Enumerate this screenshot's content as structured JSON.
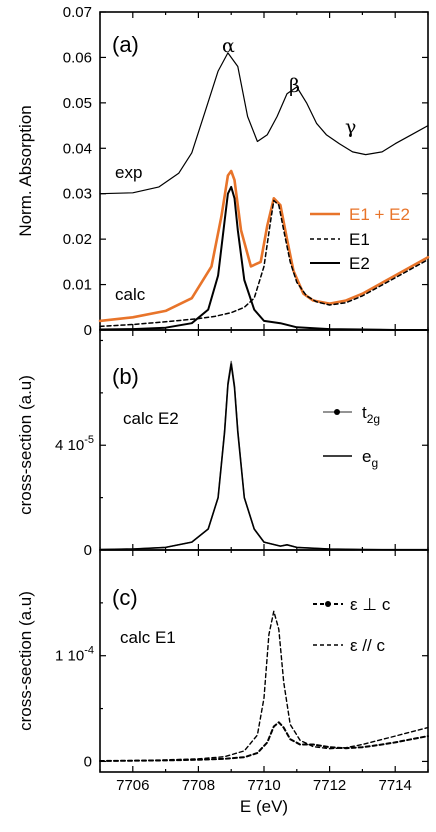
{
  "chart_data": [
    {
      "panel": "(a)",
      "type": "line",
      "ylabel": "Norm. Absorption",
      "ylim": [
        0,
        0.07
      ],
      "yticks": [
        "0",
        "0.01",
        "0.02",
        "0.03",
        "0.04",
        "0.05",
        "0.06",
        "0.07"
      ],
      "xlim": [
        7705,
        7715
      ],
      "annotations": {
        "exp": "exp",
        "calc": "calc",
        "alpha": "α",
        "beta": "β",
        "gamma": "γ"
      },
      "legend": [
        "E1 + E2",
        "E1",
        "E2"
      ],
      "legend_placement": "right",
      "colors": {
        "E1 + E2": "#e8742a",
        "E1": "#000000",
        "E2": "#000000",
        "exp": "#000000"
      },
      "series": [
        {
          "name": "exp",
          "x": [
            7705,
            7706,
            7706.8,
            7707.4,
            7707.8,
            7708.2,
            7708.6,
            7708.9,
            7709.2,
            7709.5,
            7709.8,
            7710.1,
            7710.4,
            7710.7,
            7711.0,
            7711.3,
            7711.6,
            7711.9,
            7712.3,
            7712.7,
            7713.1,
            7713.6,
            7714.0,
            7714.5,
            7715
          ],
          "y": [
            0.03,
            0.0302,
            0.0315,
            0.0345,
            0.039,
            0.048,
            0.057,
            0.061,
            0.058,
            0.047,
            0.0415,
            0.043,
            0.047,
            0.052,
            0.0535,
            0.05,
            0.0455,
            0.043,
            0.041,
            0.0392,
            0.0386,
            0.0392,
            0.041,
            0.043,
            0.045
          ]
        },
        {
          "name": "E1 + E2",
          "x": [
            7705,
            7706,
            7707,
            7707.8,
            7708.4,
            7708.7,
            7708.9,
            7709.0,
            7709.1,
            7709.3,
            7709.6,
            7709.9,
            7710.1,
            7710.3,
            7710.5,
            7710.7,
            7710.9,
            7711.2,
            7711.5,
            7712,
            7712.5,
            7713,
            7713.5,
            7714,
            7714.5,
            7715
          ],
          "y": [
            0.002,
            0.0028,
            0.0042,
            0.007,
            0.014,
            0.025,
            0.034,
            0.035,
            0.033,
            0.022,
            0.014,
            0.015,
            0.023,
            0.029,
            0.0275,
            0.02,
            0.013,
            0.008,
            0.0065,
            0.0058,
            0.0065,
            0.008,
            0.01,
            0.012,
            0.014,
            0.016
          ]
        },
        {
          "name": "E1",
          "x": [
            7705,
            7706,
            7707,
            7708,
            7708.5,
            7709,
            7709.4,
            7709.7,
            7710.0,
            7710.2,
            7710.3,
            7710.45,
            7710.6,
            7710.8,
            7711.0,
            7711.3,
            7711.6,
            7712,
            7712.5,
            7713,
            7713.5,
            7714,
            7714.5,
            7715
          ],
          "y": [
            0.0008,
            0.0012,
            0.0018,
            0.0025,
            0.003,
            0.0038,
            0.005,
            0.007,
            0.014,
            0.024,
            0.0285,
            0.0275,
            0.022,
            0.015,
            0.0105,
            0.0075,
            0.0062,
            0.0055,
            0.006,
            0.0075,
            0.0095,
            0.0115,
            0.0135,
            0.0155
          ]
        },
        {
          "name": "E2",
          "x": [
            7705,
            7706,
            7707,
            7707.8,
            7708.3,
            7708.6,
            7708.8,
            7708.9,
            7709.0,
            7709.1,
            7709.2,
            7709.4,
            7709.7,
            7710.0,
            7710.5,
            7711,
            7712,
            7713,
            7714,
            7715
          ],
          "y": [
            0.0001,
            0.0002,
            0.0005,
            0.0015,
            0.0045,
            0.012,
            0.024,
            0.03,
            0.0315,
            0.029,
            0.022,
            0.011,
            0.0045,
            0.002,
            0.0015,
            0.0006,
            0.0002,
            0.0001,
            0.0,
            0.0
          ]
        }
      ]
    },
    {
      "panel": "(b)",
      "type": "line",
      "ylabel": "cross-section (a.u)",
      "ylim": [
        0,
        8.4e-05
      ],
      "yticks": [
        "0",
        "4 10-5"
      ],
      "xlim": [
        7705,
        7715
      ],
      "annotations": {
        "calc": "calc E2"
      },
      "legend": [
        "t2g",
        "eg"
      ],
      "legend_placement": "top-right",
      "series": [
        {
          "name": "t2g",
          "x": [
            7705,
            7706,
            7707,
            7707.8,
            7708.3,
            7708.6,
            7708.8,
            7708.9,
            7709.0,
            7709.1,
            7709.2,
            7709.4,
            7709.7,
            7710.0,
            7710.5,
            7710.7,
            7711,
            7712,
            7713,
            7714,
            7715
          ],
          "y": [
            2e-07,
            4e-07,
            1e-06,
            3e-06,
            8e-06,
            2e-05,
            4.6e-05,
            6.4e-05,
            7.2e-05,
            6.3e-05,
            4.6e-05,
            2e-05,
            8e-06,
            3e-06,
            1.5e-06,
            2e-06,
            1e-06,
            4e-07,
            2e-07,
            1e-07,
            1e-07
          ]
        },
        {
          "name": "eg",
          "x": [
            7705,
            7706,
            7707,
            7707.8,
            7708.3,
            7708.6,
            7708.8,
            7708.9,
            7709.0,
            7709.1,
            7709.2,
            7709.4,
            7709.7,
            7710.0,
            7710.5,
            7710.7,
            7711,
            7712,
            7713,
            7714,
            7715
          ],
          "y": [
            2e-07,
            4e-07,
            1e-06,
            3e-06,
            8e-06,
            2e-05,
            4.5e-05,
            6.3e-05,
            7.1e-05,
            6.2e-05,
            4.5e-05,
            2e-05,
            8e-06,
            3e-06,
            1.5e-06,
            2e-06,
            1e-06,
            4e-07,
            2e-07,
            1e-07,
            1e-07
          ]
        }
      ]
    },
    {
      "panel": "(c)",
      "type": "line",
      "ylabel": "cross-section (a.u)",
      "xlabel": "E (eV)",
      "ylim": [
        -1e-05,
        0.0002
      ],
      "yticks": [
        "0",
        "1 10-4"
      ],
      "xlim": [
        7705,
        7715
      ],
      "xticks": [
        "7706",
        "7708",
        "7710",
        "7712",
        "7714"
      ],
      "annotations": {
        "calc": "calc E1"
      },
      "legend": [
        "ε ⊥ c",
        "ε // c"
      ],
      "legend_placement": "top-right",
      "series": [
        {
          "name": "ε ⊥ c",
          "x": [
            7705,
            7706,
            7707,
            7708,
            7708.8,
            7709.4,
            7709.8,
            7710.1,
            7710.3,
            7710.45,
            7710.6,
            7710.8,
            7711.1,
            7711.5,
            7712,
            7712.5,
            7713,
            7713.5,
            7714,
            7714.5,
            7715
          ],
          "y": [
            4e-07,
            7e-07,
            1e-06,
            1.6e-06,
            2.5e-06,
            4e-06,
            8e-06,
            1.8e-05,
            3.3e-05,
            3.7e-05,
            3.2e-05,
            2.1e-05,
            1.6e-05,
            1.6e-05,
            1.35e-05,
            1.25e-05,
            1.35e-05,
            1.55e-05,
            1.8e-05,
            2.1e-05,
            2.4e-05
          ]
        },
        {
          "name": "ε // c",
          "x": [
            7705,
            7706,
            7707,
            7708,
            7708.8,
            7709.4,
            7709.8,
            7710.0,
            7710.15,
            7710.3,
            7710.45,
            7710.6,
            7710.8,
            7711.1,
            7711.5,
            7712,
            7712.5,
            7713,
            7713.5,
            7714,
            7714.5,
            7715
          ],
          "y": [
            4e-07,
            8e-07,
            1.4e-06,
            2.5e-06,
            4.5e-06,
            1e-05,
            2.5e-05,
            6e-05,
            0.00012,
            0.000142,
            0.000125,
            7.5e-05,
            3.5e-05,
            2e-05,
            1.4e-05,
            1.2e-05,
            1.3e-05,
            1.6e-05,
            2e-05,
            2.4e-05,
            2.8e-05,
            3.2e-05
          ]
        }
      ]
    }
  ]
}
